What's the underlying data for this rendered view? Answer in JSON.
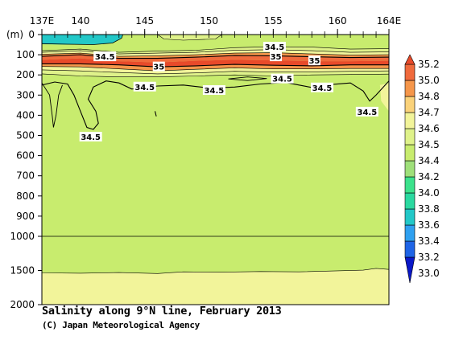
{
  "chart_data": {
    "type": "heatmap",
    "title": "Salinity along 9°N line, February 2013",
    "credit": "(C) Japan Meteorological Agency",
    "xlabel": "",
    "ylabel": "(m)",
    "x_range": [
      137,
      164
    ],
    "x_ticks": [
      {
        "value": 137,
        "label": "137E"
      },
      {
        "value": 140,
        "label": "140"
      },
      {
        "value": 145,
        "label": "145"
      },
      {
        "value": 150,
        "label": "150"
      },
      {
        "value": 155,
        "label": "155"
      },
      {
        "value": 160,
        "label": "160"
      },
      {
        "value": 164,
        "label": "164E"
      }
    ],
    "y_ticks": [
      {
        "value": 0,
        "label": "0"
      },
      {
        "value": 100,
        "label": "100"
      },
      {
        "value": 200,
        "label": "200"
      },
      {
        "value": 300,
        "label": "300"
      },
      {
        "value": 400,
        "label": "400"
      },
      {
        "value": 500,
        "label": "500"
      },
      {
        "value": 600,
        "label": "600"
      },
      {
        "value": 700,
        "label": "700"
      },
      {
        "value": 800,
        "label": "800"
      },
      {
        "value": 900,
        "label": "900"
      },
      {
        "value": 1000,
        "label": "1000"
      },
      {
        "value": 1500,
        "label": "1500"
      },
      {
        "value": 2000,
        "label": "2000"
      }
    ],
    "colorbar": {
      "levels": [
        "33.0",
        "33.2",
        "33.4",
        "33.6",
        "33.8",
        "34.0",
        "34.2",
        "34.4",
        "34.5",
        "34.6",
        "34.7",
        "34.8",
        "35.0",
        "35.2"
      ],
      "colors": [
        "#0a18c8",
        "#1e64e6",
        "#2fa0f0",
        "#22c8c8",
        "#2ad9a0",
        "#3ce28c",
        "#9fe07a",
        "#c8ec6e",
        "#dff28a",
        "#f2f49a",
        "#fad27a",
        "#f5964a",
        "#f06a3c",
        "#e84a2a"
      ]
    },
    "contour_labels": [
      {
        "text": "34.5",
        "x": 141.9,
        "y": 108
      },
      {
        "text": "35",
        "x": 146.1,
        "y": 158
      },
      {
        "text": "34.5",
        "x": 145.0,
        "y": 258
      },
      {
        "text": "34.5",
        "x": 150.4,
        "y": 275
      },
      {
        "text": "34.5",
        "x": 155.1,
        "y": 60
      },
      {
        "text": "35",
        "x": 155.2,
        "y": 108
      },
      {
        "text": "35",
        "x": 158.2,
        "y": 128
      },
      {
        "text": "34.5",
        "x": 155.7,
        "y": 218
      },
      {
        "text": "34.5",
        "x": 158.8,
        "y": 262
      },
      {
        "text": "34.5",
        "x": 162.3,
        "y": 382
      },
      {
        "text": "34.5",
        "x": 140.8,
        "y": 506
      }
    ]
  }
}
